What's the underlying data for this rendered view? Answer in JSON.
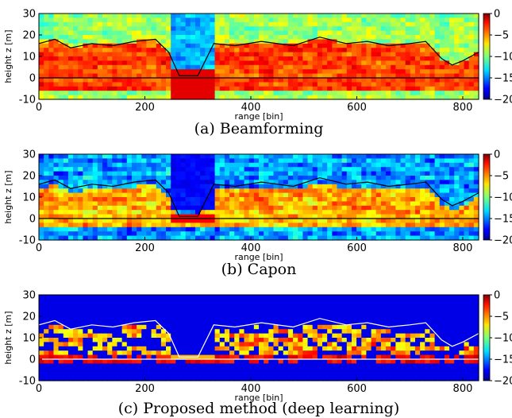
{
  "figure": {
    "panels": [
      {
        "caption": "(a) Beamforming",
        "style": "beamforming"
      },
      {
        "caption": "(b) Capon",
        "style": "capon"
      },
      {
        "caption": "(c) Proposed method (deep learning)",
        "style": "deep"
      }
    ]
  },
  "chart_data": [
    {
      "type": "heatmap",
      "title": "(a) Beamforming",
      "xlabel": "range [bin]",
      "ylabel": "height z [m]",
      "xlim": [
        0,
        830
      ],
      "ylim": [
        -10,
        30
      ],
      "xticks": [
        0,
        200,
        400,
        600,
        800
      ],
      "yticks": [
        -10,
        0,
        10,
        20,
        30
      ],
      "colorbar": {
        "min": -20,
        "max": 0,
        "ticks": [
          0,
          -5,
          -10,
          -15,
          -20
        ],
        "colormap": "jet"
      },
      "lines": [
        {
          "color": "#000000",
          "label": "ground",
          "y": 0
        },
        {
          "color": "#000000",
          "label": "canopy top",
          "x": [
            0,
            30,
            60,
            100,
            140,
            180,
            220,
            245,
            265,
            300,
            330,
            370,
            420,
            480,
            530,
            580,
            620,
            660,
            700,
            730,
            760,
            780,
            800,
            830
          ],
          "y": [
            16,
            18,
            14,
            16,
            15,
            17,
            18,
            12,
            1,
            1,
            16,
            15,
            17,
            15,
            19,
            16,
            17,
            15,
            16,
            17,
            9,
            6,
            8,
            12
          ]
        }
      ]
    },
    {
      "type": "heatmap",
      "title": "(b) Capon",
      "xlabel": "range [bin]",
      "ylabel": "height z [m]",
      "xlim": [
        0,
        830
      ],
      "ylim": [
        -10,
        30
      ],
      "xticks": [
        0,
        200,
        400,
        600,
        800
      ],
      "yticks": [
        -10,
        0,
        10,
        20,
        30
      ],
      "colorbar": {
        "min": -20,
        "max": 0,
        "ticks": [
          0,
          -5,
          -10,
          -15,
          -20
        ],
        "colormap": "jet"
      },
      "lines": [
        {
          "color": "#000000",
          "label": "ground",
          "y": 0
        },
        {
          "color": "#000000",
          "label": "canopy top",
          "x": [
            0,
            30,
            60,
            100,
            140,
            180,
            220,
            245,
            265,
            300,
            330,
            370,
            420,
            480,
            530,
            580,
            620,
            660,
            700,
            730,
            760,
            780,
            800,
            830
          ],
          "y": [
            16,
            18,
            14,
            16,
            15,
            17,
            18,
            12,
            1,
            1,
            16,
            15,
            17,
            15,
            19,
            16,
            17,
            15,
            16,
            17,
            9,
            6,
            8,
            12
          ]
        }
      ]
    },
    {
      "type": "heatmap",
      "title": "(c) Proposed method (deep learning)",
      "xlabel": "range [bin]",
      "ylabel": "height z [m]",
      "xlim": [
        0,
        830
      ],
      "ylim": [
        -10,
        30
      ],
      "xticks": [
        0,
        200,
        400,
        600,
        800
      ],
      "yticks": [
        -10,
        0,
        10,
        20,
        30
      ],
      "colorbar": {
        "min": -20,
        "max": 0,
        "ticks": [
          0,
          -5,
          -10,
          -15,
          -20
        ],
        "colormap": "jet"
      },
      "lines": [
        {
          "color": "#ffffff",
          "label": "ground",
          "y": 0
        },
        {
          "color": "#ffffff",
          "label": "canopy top",
          "x": [
            0,
            30,
            60,
            100,
            140,
            180,
            220,
            245,
            265,
            300,
            330,
            370,
            420,
            480,
            530,
            580,
            620,
            660,
            700,
            730,
            760,
            780,
            800,
            830
          ],
          "y": [
            16,
            18,
            14,
            16,
            15,
            17,
            18,
            12,
            1,
            1,
            16,
            15,
            17,
            15,
            19,
            16,
            17,
            15,
            16,
            17,
            9,
            6,
            8,
            12
          ]
        }
      ]
    }
  ]
}
